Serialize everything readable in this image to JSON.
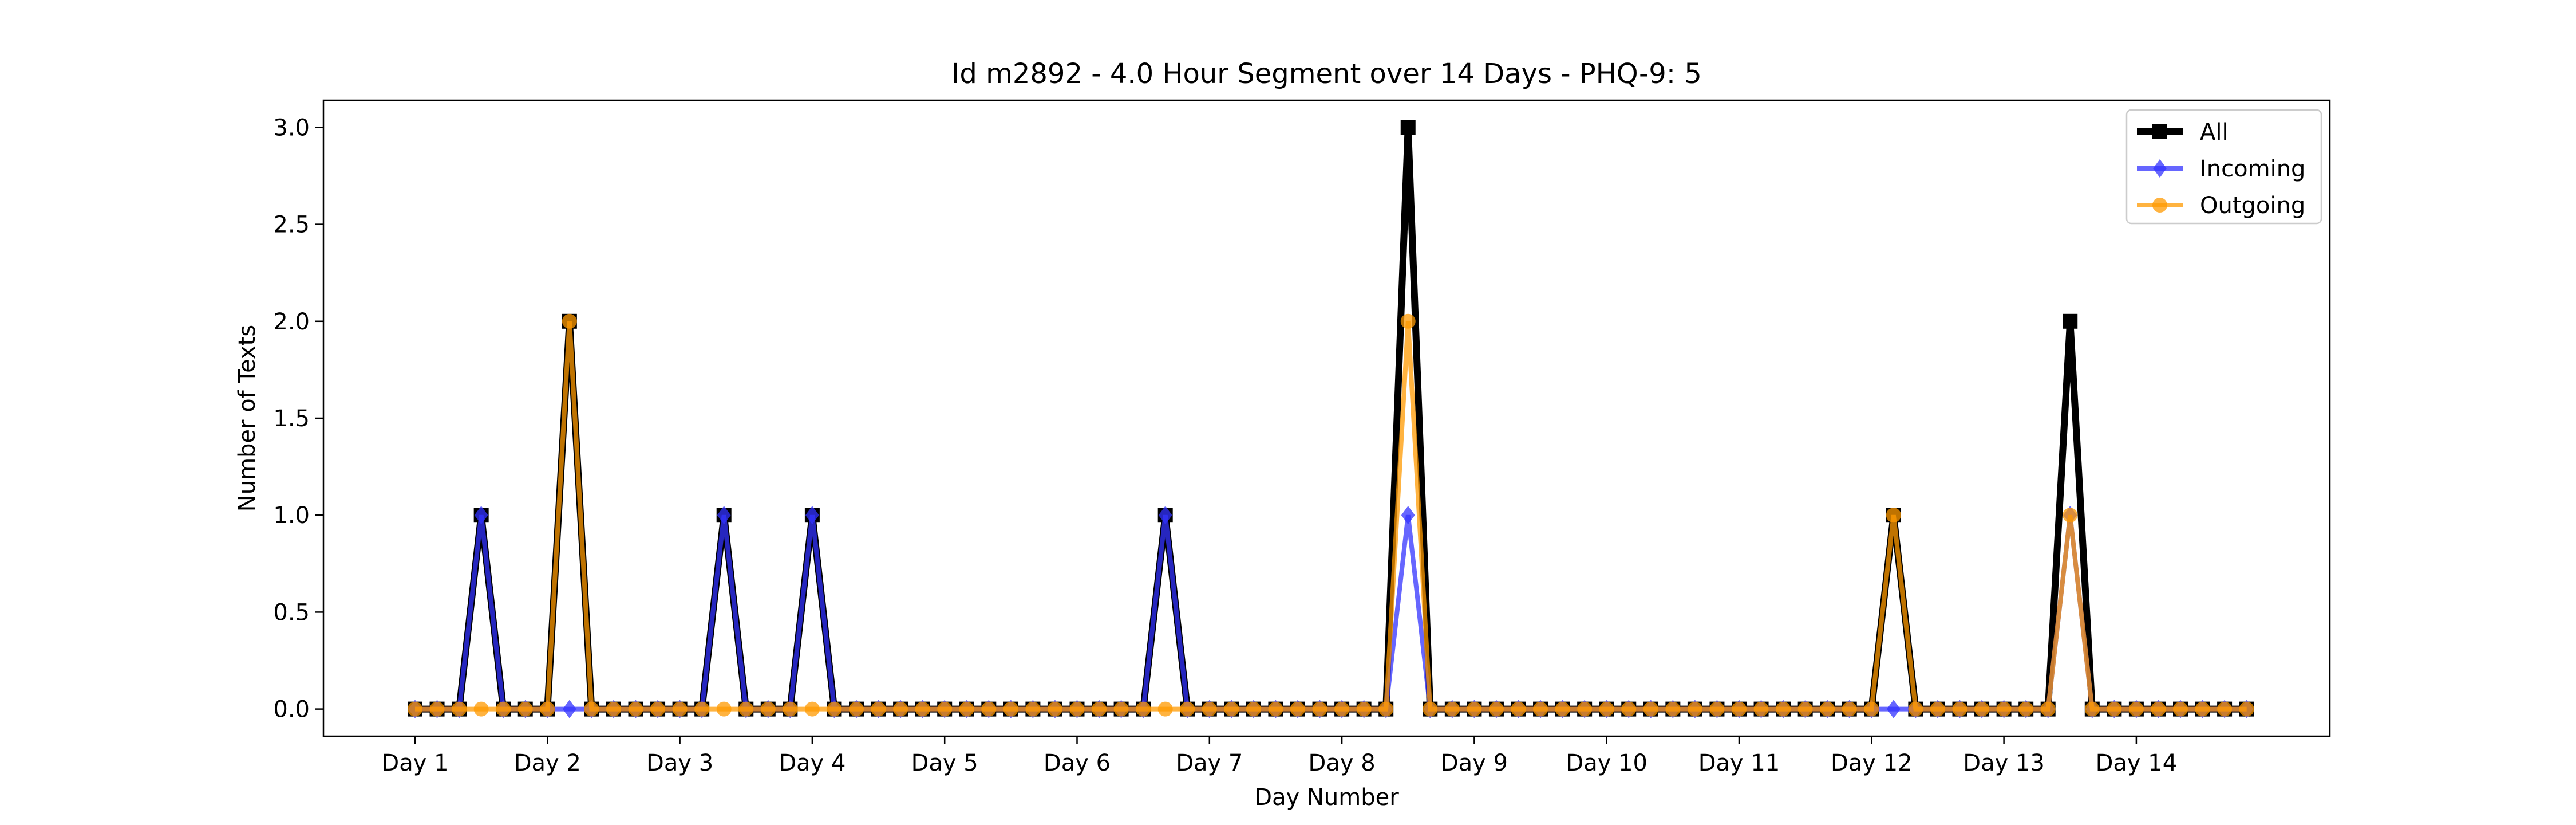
{
  "chart_data": {
    "type": "line",
    "title": "Id m2892 - 4.0 Hour Segment over 14 Days - PHQ-9: 5",
    "xlabel": "Day Number",
    "ylabel": "Number of Texts",
    "xticks": [
      "Day 1",
      "Day 2",
      "Day 3",
      "Day 4",
      "Day 5",
      "Day 6",
      "Day 7",
      "Day 8",
      "Day 9",
      "Day 10",
      "Day 11",
      "Day 12",
      "Day 13",
      "Day 14"
    ],
    "yticks": [
      "0.0",
      "0.5",
      "1.0",
      "1.5",
      "2.0",
      "2.5",
      "3.0"
    ],
    "ylim": [
      -0.14,
      3.14
    ],
    "grid": false,
    "legend_position": "top-right",
    "series": [
      {
        "name": "All",
        "color": "#000000",
        "marker": "square",
        "values": [
          0,
          0,
          0,
          1,
          0,
          0,
          0,
          2,
          0,
          0,
          0,
          0,
          0,
          0,
          1,
          0,
          0,
          0,
          1,
          0,
          0,
          0,
          0,
          0,
          0,
          0,
          0,
          0,
          0,
          0,
          0,
          0,
          0,
          0,
          1,
          0,
          0,
          0,
          0,
          0,
          0,
          0,
          0,
          0,
          0,
          3,
          0,
          0,
          0,
          0,
          0,
          0,
          0,
          0,
          0,
          0,
          0,
          0,
          0,
          0,
          0,
          0,
          0,
          0,
          0,
          0,
          0,
          1,
          0,
          0,
          0,
          0,
          0,
          0,
          0,
          2,
          0,
          0,
          0,
          0,
          0,
          0,
          0,
          0
        ]
      },
      {
        "name": "Incoming",
        "color": "#3333ff",
        "marker": "diamond",
        "values": [
          0,
          0,
          0,
          1,
          0,
          0,
          0,
          0,
          0,
          0,
          0,
          0,
          0,
          0,
          1,
          0,
          0,
          0,
          1,
          0,
          0,
          0,
          0,
          0,
          0,
          0,
          0,
          0,
          0,
          0,
          0,
          0,
          0,
          0,
          1,
          0,
          0,
          0,
          0,
          0,
          0,
          0,
          0,
          0,
          0,
          1,
          0,
          0,
          0,
          0,
          0,
          0,
          0,
          0,
          0,
          0,
          0,
          0,
          0,
          0,
          0,
          0,
          0,
          0,
          0,
          0,
          0,
          0,
          0,
          0,
          0,
          0,
          0,
          0,
          0,
          1,
          0,
          0,
          0,
          0,
          0,
          0,
          0,
          0
        ]
      },
      {
        "name": "Outgoing",
        "color": "#ff9900",
        "marker": "circle",
        "values": [
          0,
          0,
          0,
          0,
          0,
          0,
          0,
          2,
          0,
          0,
          0,
          0,
          0,
          0,
          0,
          0,
          0,
          0,
          0,
          0,
          0,
          0,
          0,
          0,
          0,
          0,
          0,
          0,
          0,
          0,
          0,
          0,
          0,
          0,
          0,
          0,
          0,
          0,
          0,
          0,
          0,
          0,
          0,
          0,
          0,
          2,
          0,
          0,
          0,
          0,
          0,
          0,
          0,
          0,
          0,
          0,
          0,
          0,
          0,
          0,
          0,
          0,
          0,
          0,
          0,
          0,
          0,
          1,
          0,
          0,
          0,
          0,
          0,
          0,
          0,
          1,
          0,
          0,
          0,
          0,
          0,
          0,
          0,
          0
        ]
      }
    ]
  }
}
